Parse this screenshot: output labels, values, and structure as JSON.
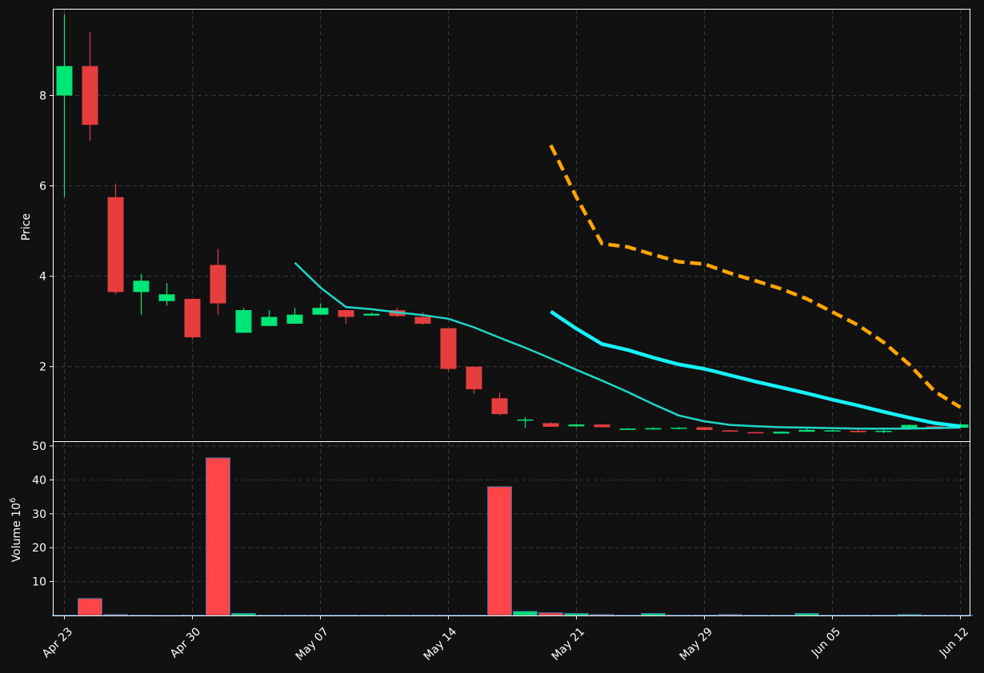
{
  "chart_data": {
    "type": "candlestick",
    "colors": {
      "background": "#111111",
      "up": "#00e676",
      "down": "#e53e3e",
      "volume_down": "#ff4545",
      "volume_up": "#00e676",
      "volume_edge": "#3a6ea5",
      "grid": "#3a3a3a",
      "mav_short": "#1fd7c8",
      "mav_medium": "#14f4ff",
      "mav_long": "#ffa500"
    },
    "price_panel": {
      "ylabel": "Price",
      "yticks": [
        2,
        4,
        6,
        8
      ],
      "ylim": [
        0.35,
        9.9
      ]
    },
    "volume_panel": {
      "ylabel": "Volume  10",
      "ylabel_exponent": "6",
      "yticks": [
        10,
        20,
        30,
        40,
        50
      ],
      "ylim": [
        0,
        50
      ]
    },
    "x_tick_labels": [
      {
        "index": 0,
        "label": "Apr 23"
      },
      {
        "index": 5,
        "label": "Apr 30"
      },
      {
        "index": 10,
        "label": "May 07"
      },
      {
        "index": 15,
        "label": "May 14"
      },
      {
        "index": 20,
        "label": "May 21"
      },
      {
        "index": 25,
        "label": "May 29"
      },
      {
        "index": 30,
        "label": "Jun 05"
      },
      {
        "index": 35,
        "label": "Jun 12"
      }
    ],
    "candles": [
      {
        "o": 8.0,
        "h": 9.8,
        "l": 5.75,
        "c": 8.65,
        "v": 0.1
      },
      {
        "o": 8.65,
        "h": 9.4,
        "l": 7.0,
        "c": 7.35,
        "v": 5.0
      },
      {
        "o": 5.75,
        "h": 6.05,
        "l": 3.6,
        "c": 3.65,
        "v": 0.3
      },
      {
        "o": 3.65,
        "h": 4.05,
        "l": 3.15,
        "c": 3.9,
        "v": 0.1
      },
      {
        "o": 3.45,
        "h": 3.85,
        "l": 3.35,
        "c": 3.6,
        "v": 0.05
      },
      {
        "o": 3.5,
        "h": 3.5,
        "l": 2.6,
        "c": 2.65,
        "v": 0.1
      },
      {
        "o": 4.25,
        "h": 4.6,
        "l": 3.15,
        "c": 3.4,
        "v": 46.5
      },
      {
        "o": 2.75,
        "h": 3.3,
        "l": 2.75,
        "c": 3.25,
        "v": 0.6
      },
      {
        "o": 2.9,
        "h": 3.25,
        "l": 2.9,
        "c": 3.1,
        "v": 0.1
      },
      {
        "o": 2.95,
        "h": 3.3,
        "l": 2.95,
        "c": 3.15,
        "v": 0.1
      },
      {
        "o": 3.15,
        "h": 3.4,
        "l": 3.15,
        "c": 3.3,
        "v": 0.1
      },
      {
        "o": 3.25,
        "h": 3.25,
        "l": 2.95,
        "c": 3.1,
        "v": 0.1
      },
      {
        "o": 3.13,
        "h": 3.2,
        "l": 3.13,
        "c": 3.17,
        "v": 0.1
      },
      {
        "o": 3.25,
        "h": 3.3,
        "l": 3.1,
        "c": 3.12,
        "v": 0.1
      },
      {
        "o": 3.1,
        "h": 3.2,
        "l": 2.93,
        "c": 2.95,
        "v": 0.1
      },
      {
        "o": 2.85,
        "h": 2.85,
        "l": 1.9,
        "c": 1.95,
        "v": 0.1
      },
      {
        "o": 2.0,
        "h": 2.0,
        "l": 1.4,
        "c": 1.5,
        "v": 0.1
      },
      {
        "o": 1.3,
        "h": 1.42,
        "l": 0.92,
        "c": 0.95,
        "v": 38.0
      },
      {
        "o": 0.82,
        "h": 0.88,
        "l": 0.65,
        "c": 0.83,
        "v": 1.2
      },
      {
        "o": 0.75,
        "h": 0.77,
        "l": 0.68,
        "c": 0.67,
        "v": 0.8
      },
      {
        "o": 0.68,
        "h": 0.73,
        "l": 0.67,
        "c": 0.72,
        "v": 0.6
      },
      {
        "o": 0.72,
        "h": 0.72,
        "l": 0.65,
        "c": 0.66,
        "v": 0.3
      },
      {
        "o": 0.6,
        "h": 0.64,
        "l": 0.6,
        "c": 0.63,
        "v": 0.1
      },
      {
        "o": 0.61,
        "h": 0.66,
        "l": 0.61,
        "c": 0.64,
        "v": 0.6
      },
      {
        "o": 0.64,
        "h": 0.66,
        "l": 0.61,
        "c": 0.65,
        "v": 0.1
      },
      {
        "o": 0.66,
        "h": 0.66,
        "l": 0.59,
        "c": 0.6,
        "v": 0.1
      },
      {
        "o": 0.59,
        "h": 0.6,
        "l": 0.56,
        "c": 0.57,
        "v": 0.3
      },
      {
        "o": 0.55,
        "h": 0.56,
        "l": 0.53,
        "c": 0.54,
        "v": 0.1
      },
      {
        "o": 0.52,
        "h": 0.57,
        "l": 0.52,
        "c": 0.56,
        "v": 0.1
      },
      {
        "o": 0.56,
        "h": 0.67,
        "l": 0.56,
        "c": 0.6,
        "v": 0.6
      },
      {
        "o": 0.58,
        "h": 0.6,
        "l": 0.57,
        "c": 0.59,
        "v": 0.1
      },
      {
        "o": 0.58,
        "h": 0.6,
        "l": 0.54,
        "c": 0.55,
        "v": 0.1
      },
      {
        "o": 0.57,
        "h": 0.6,
        "l": 0.53,
        "c": 0.58,
        "v": 0.1
      },
      {
        "o": 0.62,
        "h": 0.72,
        "l": 0.62,
        "c": 0.71,
        "v": 0.3
      },
      {
        "o": 0.68,
        "h": 0.69,
        "l": 0.65,
        "c": 0.66,
        "v": 0.1
      },
      {
        "o": 0.65,
        "h": 0.75,
        "l": 0.65,
        "c": 0.72,
        "v": 0.1
      }
    ],
    "moving_averages": [
      {
        "period": 10,
        "color_key": "mav_short",
        "width": 2.5,
        "dash": false,
        "start": 9,
        "values": [
          4.3,
          3.75,
          3.32,
          3.27,
          3.2,
          3.14,
          3.06,
          2.87,
          2.64,
          2.42,
          2.18,
          1.93,
          1.69,
          1.44,
          1.17,
          0.92,
          0.79,
          0.71,
          0.68,
          0.66,
          0.65,
          0.64,
          0.63,
          0.63,
          0.63,
          0.64,
          0.65
        ]
      },
      {
        "period": 20,
        "color_key": "mav_medium",
        "width": 4.5,
        "dash": false,
        "start": 19,
        "values": [
          3.22,
          2.84,
          2.5,
          2.37,
          2.2,
          2.05,
          1.95,
          1.81,
          1.67,
          1.54,
          1.41,
          1.27,
          1.14,
          1.0,
          0.87,
          0.75,
          0.68
        ]
      },
      {
        "period": 20,
        "color_key": "mav_long",
        "width": 4.5,
        "dash": true,
        "start": 19,
        "values": [
          6.9,
          5.75,
          4.72,
          4.65,
          4.48,
          4.32,
          4.27,
          4.07,
          3.9,
          3.72,
          3.5,
          3.21,
          2.92,
          2.54,
          2.05,
          1.45,
          1.1
        ]
      }
    ]
  }
}
